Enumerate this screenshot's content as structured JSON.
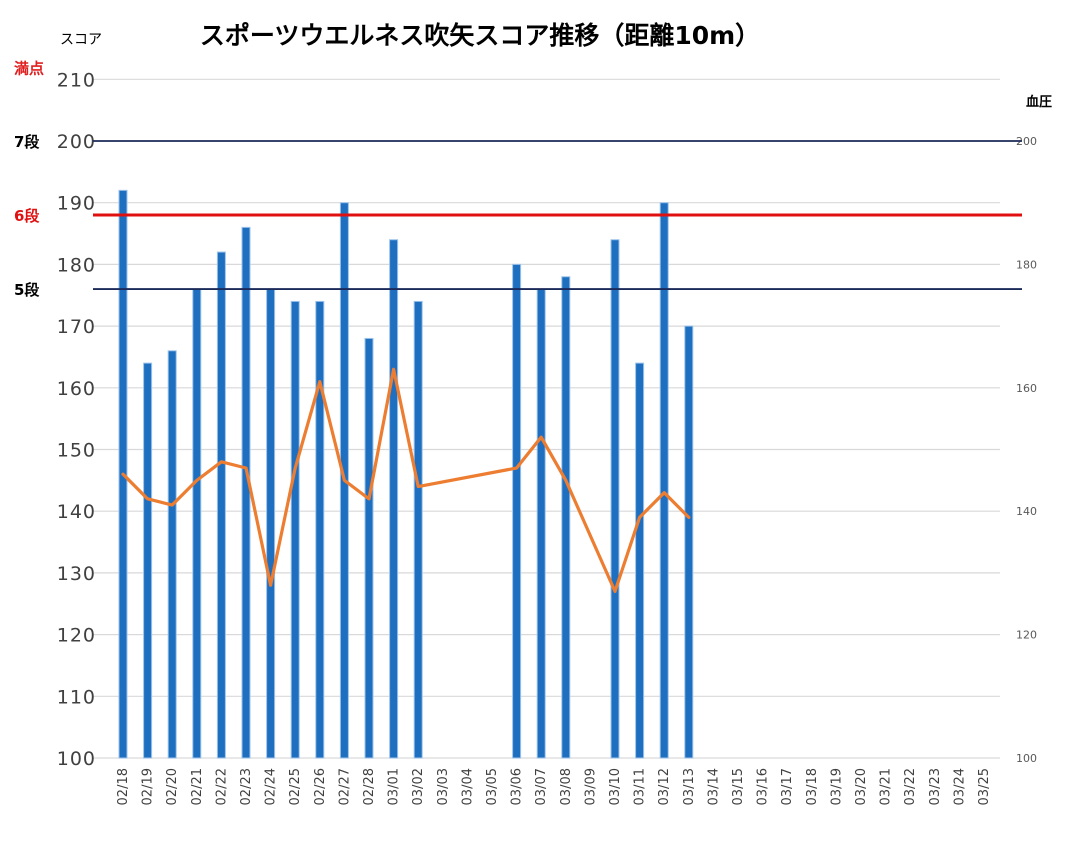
{
  "chart_data": {
    "type": "bar+line",
    "title": "スポーツウエルネス吹矢スコア推移（距離10m）",
    "ylabel_left": "スコア",
    "ylabel_right": "血圧",
    "ylim_left": [
      100,
      210
    ],
    "yticks_left": [
      100,
      110,
      120,
      130,
      140,
      150,
      160,
      170,
      180,
      190,
      200,
      210
    ],
    "ylim_right": [
      100,
      210
    ],
    "yticks_right": [
      100,
      120,
      140,
      160,
      180,
      200
    ],
    "grid": true,
    "categories": [
      "02/18",
      "02/19",
      "02/20",
      "02/21",
      "02/22",
      "02/23",
      "02/24",
      "02/25",
      "02/26",
      "02/27",
      "02/28",
      "03/01",
      "03/02",
      "03/03",
      "03/04",
      "03/05",
      "03/06",
      "03/07",
      "03/08",
      "03/09",
      "03/10",
      "03/11",
      "03/12",
      "03/13",
      "03/14",
      "03/15",
      "03/16",
      "03/17",
      "03/18",
      "03/19",
      "03/20",
      "03/21",
      "03/22",
      "03/23",
      "03/24",
      "03/25"
    ],
    "series": [
      {
        "kind": "bar",
        "axis": "left",
        "color": "#1f6fc0",
        "values": [
          192,
          164,
          166,
          176,
          182,
          186,
          176,
          174,
          174,
          190,
          168,
          184,
          174,
          null,
          null,
          null,
          180,
          176,
          178,
          null,
          184,
          164,
          190,
          170,
          null,
          null,
          null,
          null,
          null,
          null,
          null,
          null,
          null,
          null,
          null,
          null
        ]
      },
      {
        "kind": "line",
        "axis": "right",
        "color": "#ed7d31",
        "values": [
          146,
          142,
          141,
          145,
          148,
          147,
          128,
          147,
          161,
          145,
          142,
          163,
          144,
          null,
          null,
          null,
          147,
          152,
          145,
          null,
          127,
          139,
          143,
          139,
          null,
          null,
          null,
          null,
          null,
          null,
          null,
          null,
          null,
          null,
          null,
          null
        ]
      }
    ],
    "reference_lines": [
      {
        "label": "満点",
        "value": 210,
        "color": "#e02020",
        "line": false
      },
      {
        "label": "7段",
        "value": 200,
        "color": "#1a2a5a",
        "line": true
      },
      {
        "label": "6段",
        "value": 188,
        "color": "#e01010",
        "line": true
      },
      {
        "label": "5段",
        "value": 176,
        "color": "#1a2a5a",
        "line": true
      }
    ]
  }
}
